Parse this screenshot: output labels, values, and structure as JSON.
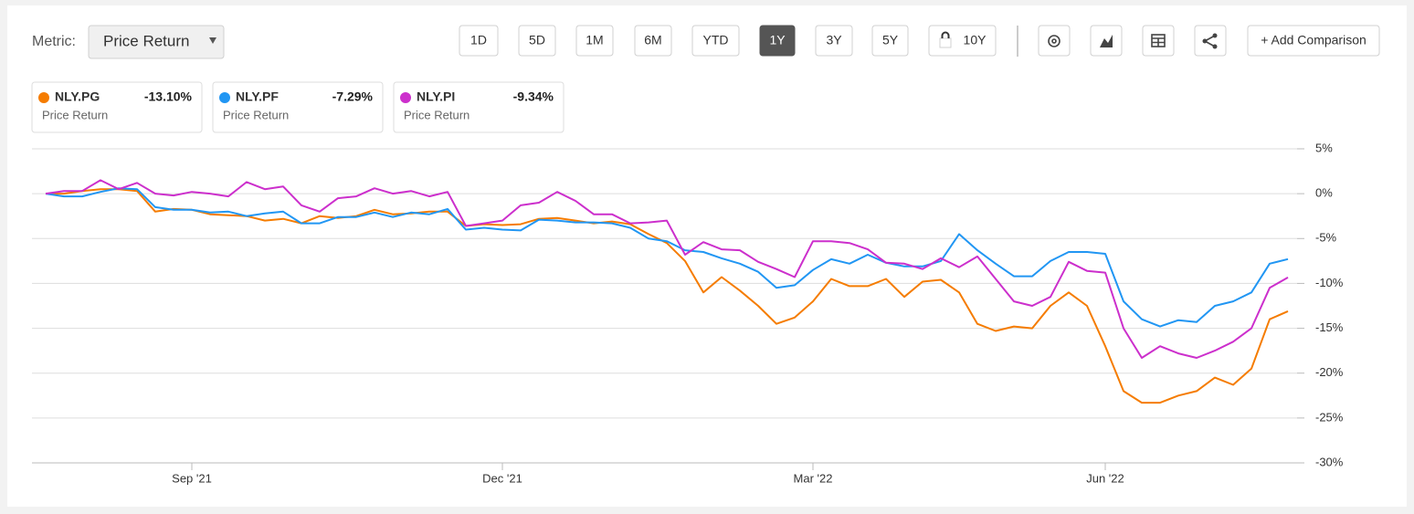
{
  "toolbar": {
    "metric_label": "Metric:",
    "metric_value": "Price Return",
    "ranges": [
      "1D",
      "5D",
      "1M",
      "6M",
      "YTD",
      "1Y",
      "3Y",
      "5Y",
      "10Y"
    ],
    "active": "1Y",
    "add_comparison": "+ Add Comparison"
  },
  "chart_data": {
    "type": "line",
    "categories": [
      null,
      null,
      null,
      null,
      null,
      null,
      null,
      null,
      "Sep '21",
      null,
      null,
      null,
      null,
      null,
      null,
      null,
      null,
      null,
      null,
      null,
      null,
      null,
      null,
      null,
      null,
      "Dec '21",
      null,
      null,
      null,
      null,
      null,
      null,
      null,
      null,
      null,
      null,
      null,
      null,
      null,
      null,
      null,
      null,
      "Mar '22",
      null,
      null,
      null,
      null,
      null,
      null,
      null,
      null,
      null,
      null,
      null,
      null,
      null,
      null,
      null,
      "Jun '22",
      null,
      null,
      null,
      null,
      null,
      null,
      null,
      null,
      null,
      null
    ],
    "ylim": [
      -30,
      5
    ],
    "yticks": [
      {
        "value": 5,
        "label": "5%"
      },
      {
        "value": 0,
        "label": "0%"
      },
      {
        "value": -5,
        "label": "-5%"
      },
      {
        "value": -10,
        "label": "-10%"
      },
      {
        "value": -15,
        "label": "-15%"
      },
      {
        "value": -20,
        "label": "-20%"
      },
      {
        "value": -25,
        "label": "-25%"
      },
      {
        "value": -30,
        "label": "-30%"
      }
    ],
    "grid": true,
    "series": [
      {
        "name": "NLY.PG",
        "color": "#f57c00",
        "metric": "Price Return",
        "change": "-13.10%",
        "values": [
          0,
          0,
          0.3,
          0.5,
          0.5,
          0.3,
          -2,
          -1.7,
          -1.8,
          -2.3,
          -2.4,
          -2.5,
          -3,
          -2.8,
          -3.3,
          -2.5,
          -2.7,
          -2.5,
          -1.8,
          -2.3,
          -2.2,
          -2,
          -2,
          -3.6,
          -3.4,
          -3.5,
          -3.4,
          -2.8,
          -2.7,
          -3,
          -3.3,
          -3.1,
          -3.4,
          -4.5,
          -5.5,
          -7.5,
          -11,
          -9.3,
          -10.8,
          -12.5,
          -14.5,
          -13.8,
          -12,
          -9.5,
          -10.3,
          -10.3,
          -9.5,
          -11.5,
          -9.8,
          -9.6,
          -11,
          -14.5,
          -15.3,
          -14.8,
          -15,
          -12.5,
          -11,
          -12.5,
          -17,
          -22,
          -23.3,
          -23.3,
          -22.5,
          -22,
          -20.5,
          -21.3,
          -19.5,
          -14,
          -13.1
        ]
      },
      {
        "name": "NLY.PF",
        "color": "#2196f3",
        "metric": "Price Return",
        "change": "-7.29%",
        "values": [
          0,
          -0.3,
          -0.3,
          0.2,
          0.6,
          0.5,
          -1.5,
          -1.8,
          -1.8,
          -2.1,
          -2,
          -2.5,
          -2.2,
          -2,
          -3.3,
          -3.3,
          -2.6,
          -2.6,
          -2.1,
          -2.6,
          -2.1,
          -2.3,
          -1.7,
          -4,
          -3.8,
          -4,
          -4.1,
          -2.9,
          -3,
          -3.2,
          -3.2,
          -3.3,
          -3.8,
          -5,
          -5.3,
          -6.3,
          -6.5,
          -7.2,
          -7.8,
          -8.7,
          -10.5,
          -10.2,
          -8.5,
          -7.3,
          -7.8,
          -6.8,
          -7.7,
          -8.1,
          -8.1,
          -7.5,
          -4.5,
          -6.3,
          -7.8,
          -9.2,
          -9.2,
          -7.5,
          -6.5,
          -6.5,
          -6.7,
          -12,
          -14,
          -14.8,
          -14.1,
          -14.3,
          -12.5,
          -12,
          -11,
          -7.8,
          -7.29
        ]
      },
      {
        "name": "NLY.PI",
        "color": "#cc2fcc",
        "metric": "Price Return",
        "change": "-9.34%",
        "values": [
          0,
          0.3,
          0.3,
          1.5,
          0.5,
          1.2,
          0,
          -0.2,
          0.2,
          0,
          -0.3,
          1.3,
          0.5,
          0.8,
          -1.3,
          -2,
          -0.5,
          -0.3,
          0.6,
          0,
          0.3,
          -0.3,
          0.2,
          -3.6,
          -3.3,
          -3,
          -1.3,
          -1,
          0.2,
          -0.8,
          -2.3,
          -2.3,
          -3.3,
          -3.2,
          -3,
          -6.8,
          -5.4,
          -6.2,
          -6.3,
          -7.6,
          -8.4,
          -9.3,
          -5.3,
          -5.3,
          -5.5,
          -6.2,
          -7.7,
          -7.8,
          -8.4,
          -7.2,
          -8.2,
          -7,
          -9.5,
          -12,
          -12.5,
          -11.5,
          -7.6,
          -8.6,
          -8.8,
          -15,
          -18.3,
          -17,
          -17.8,
          -18.3,
          -17.5,
          -16.5,
          -15,
          -10.5,
          -9.34
        ]
      }
    ]
  }
}
